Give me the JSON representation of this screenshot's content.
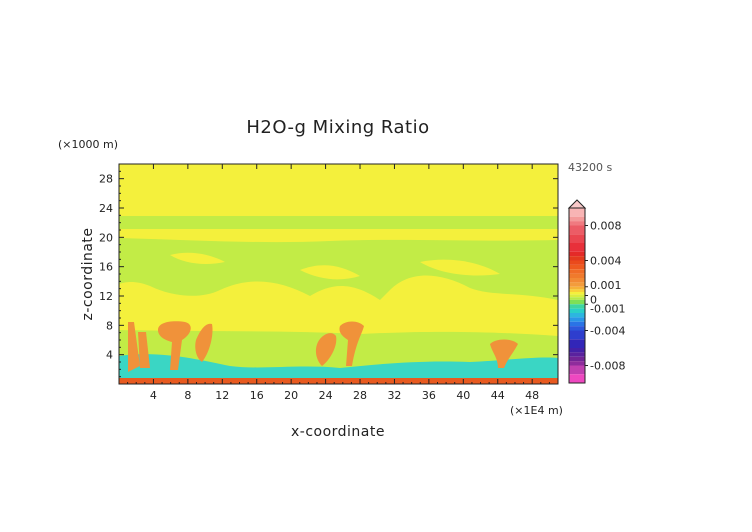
{
  "chart_data": {
    "type": "heatmap",
    "title": "H2O-g Mixing Ratio",
    "xlabel": "x-coordinate",
    "ylabel": "z-coordinate",
    "x_unit": "(×1E4 m)",
    "y_unit": "(×1000 m)",
    "time_label": "43200 s",
    "xlim": [
      0,
      51
    ],
    "ylim": [
      0,
      30
    ],
    "x_ticks": [
      4,
      8,
      12,
      16,
      20,
      24,
      28,
      32,
      36,
      40,
      44,
      48
    ],
    "y_ticks": [
      4,
      8,
      12,
      16,
      20,
      24,
      28
    ],
    "colorbar": {
      "labels": [
        "0.008",
        "0.004",
        "0.001",
        "0",
        "-0.001",
        "-0.004",
        "-0.008"
      ],
      "values": [
        0.008,
        0.004,
        0.001,
        0,
        -0.001,
        -0.004,
        -0.008
      ],
      "range": [
        -0.01,
        0.01
      ]
    },
    "colors": {
      "background_field": "#f4f03c",
      "anomaly_light": "#c2ec46",
      "warm_plume": "#f0923a",
      "cool_patch": "#3ad6c4",
      "surface_hot": "#e85a20"
    }
  }
}
